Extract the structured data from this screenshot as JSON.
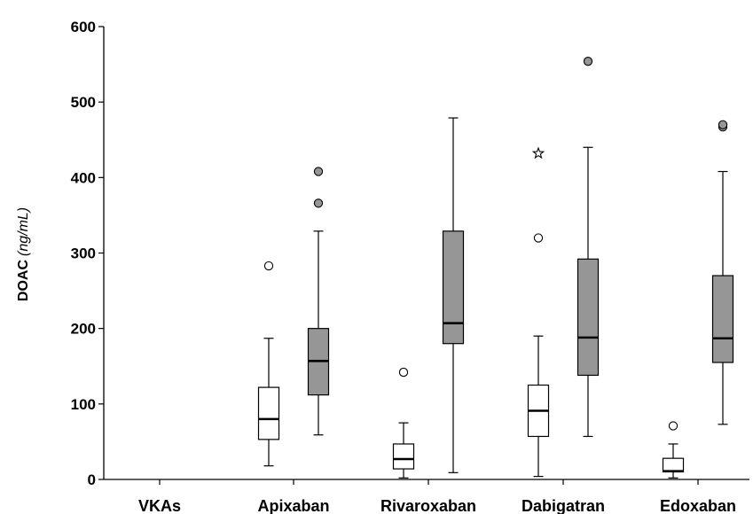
{
  "chart_data": {
    "type": "box",
    "ylabel": "DOAC",
    "ylabel_unit": "(ng/mL)",
    "ylim": [
      0,
      600
    ],
    "yticks": [
      0,
      100,
      200,
      300,
      400,
      500,
      600
    ],
    "categories": [
      "VKAs",
      "Apixaban",
      "Rivaroxaban",
      "Dabigatran",
      "Edoxaban"
    ],
    "colors": {
      "white_box": "#ffffff",
      "gray_box": "#969696",
      "stroke": "#000000"
    },
    "boxes": [
      {
        "category": "Apixaban",
        "fill": "white",
        "whisker_low": 18,
        "q1": 53,
        "median": 80,
        "q3": 122,
        "whisker_high": 187,
        "outliers": [
          {
            "y": 283,
            "marker": "circle"
          }
        ]
      },
      {
        "category": "Apixaban",
        "fill": "gray",
        "whisker_low": 59,
        "q1": 112,
        "median": 157,
        "q3": 200,
        "whisker_high": 329,
        "outliers": [
          {
            "y": 366,
            "marker": "circle"
          },
          {
            "y": 408,
            "marker": "circle"
          }
        ]
      },
      {
        "category": "Rivaroxaban",
        "fill": "white",
        "whisker_low": 2,
        "q1": 14,
        "median": 27,
        "q3": 47,
        "whisker_high": 75,
        "outliers": [
          {
            "y": 142,
            "marker": "circle"
          }
        ]
      },
      {
        "category": "Rivaroxaban",
        "fill": "gray",
        "whisker_low": 9,
        "q1": 180,
        "median": 207,
        "q3": 329,
        "whisker_high": 479,
        "outliers": []
      },
      {
        "category": "Dabigatran",
        "fill": "white",
        "whisker_low": 4,
        "q1": 57,
        "median": 91,
        "q3": 125,
        "whisker_high": 190,
        "outliers": [
          {
            "y": 320,
            "marker": "circle"
          },
          {
            "y": 432,
            "marker": "star"
          }
        ]
      },
      {
        "category": "Dabigatran",
        "fill": "gray",
        "whisker_low": 57,
        "q1": 138,
        "median": 188,
        "q3": 292,
        "whisker_high": 440,
        "outliers": [
          {
            "y": 554,
            "marker": "circle"
          }
        ]
      },
      {
        "category": "Edoxaban",
        "fill": "white",
        "whisker_low": 2,
        "q1": 10,
        "median": 11,
        "q3": 28,
        "whisker_high": 47,
        "outliers": [
          {
            "y": 71,
            "marker": "circle"
          }
        ]
      },
      {
        "category": "Edoxaban",
        "fill": "gray",
        "whisker_low": 73,
        "q1": 155,
        "median": 187,
        "q3": 270,
        "whisker_high": 408,
        "outliers": [
          {
            "y": 467,
            "marker": "circle"
          },
          {
            "y": 470,
            "marker": "circle"
          }
        ]
      }
    ]
  }
}
